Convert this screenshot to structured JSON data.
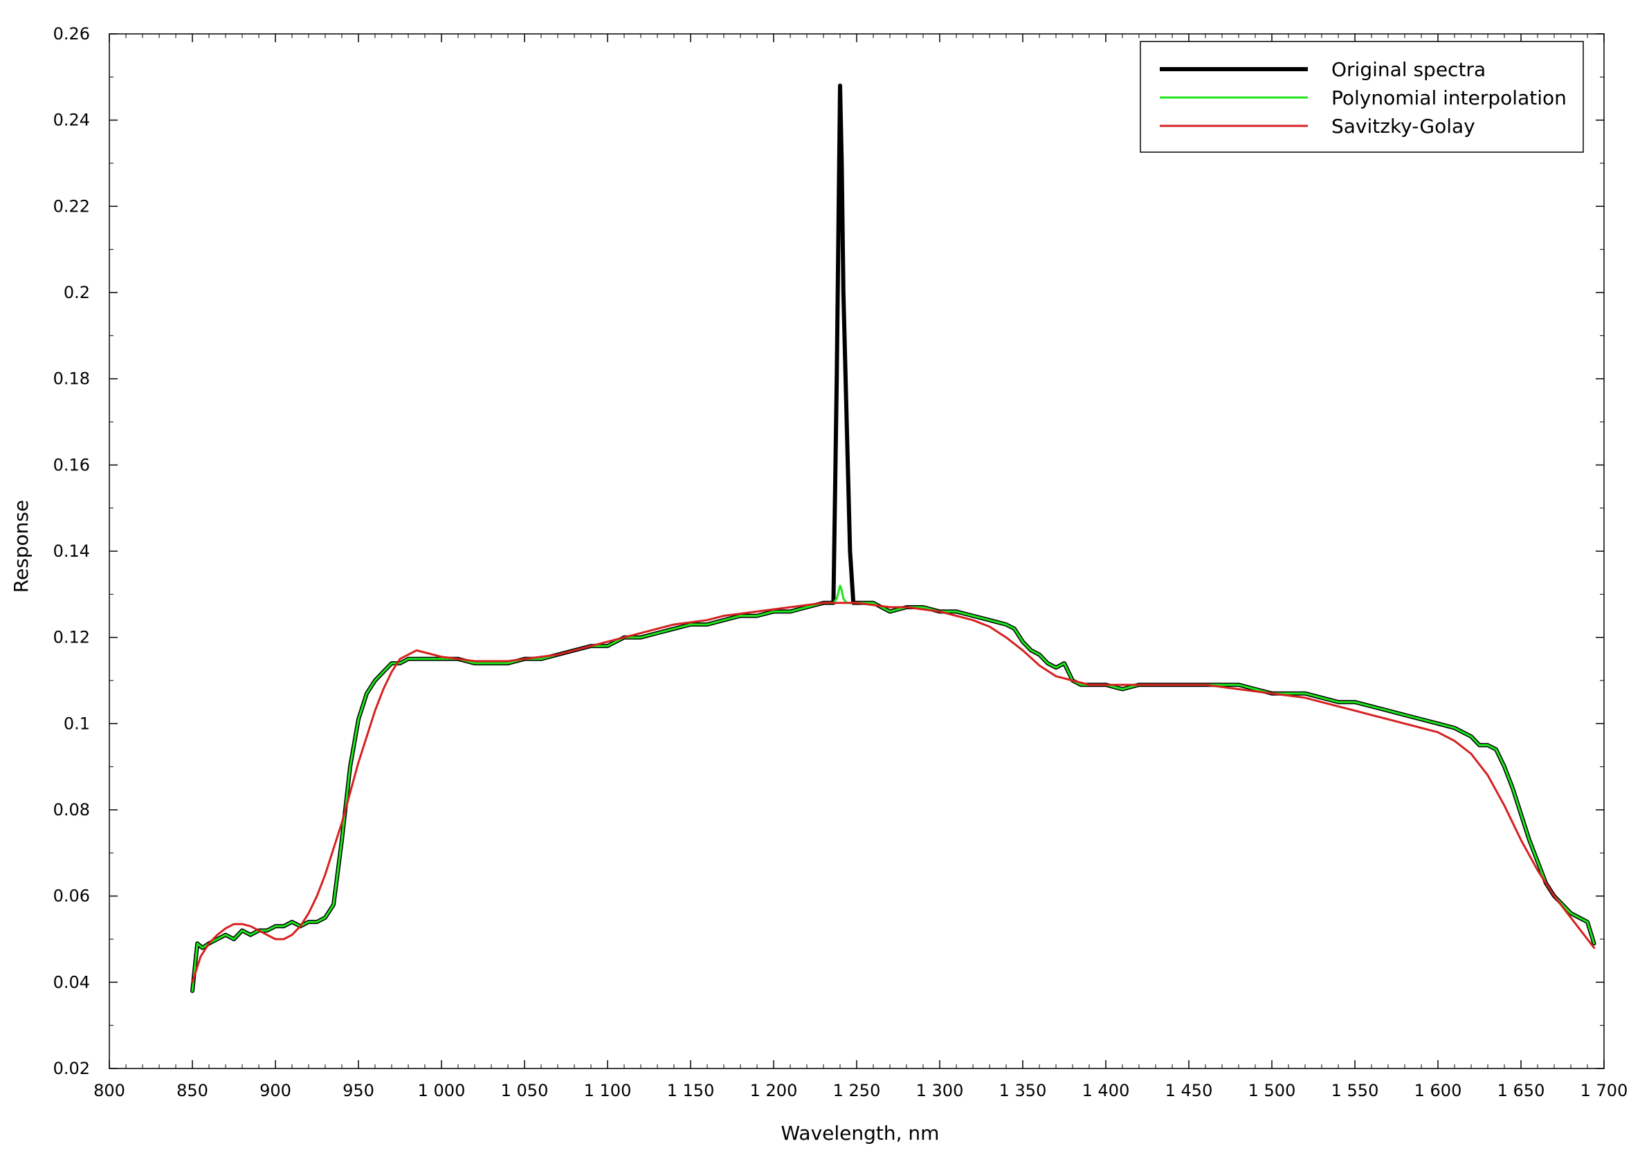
{
  "chart_data": {
    "type": "line",
    "xlabel": "Wavelength, nm",
    "ylabel": "Response",
    "xlim": [
      800,
      1700
    ],
    "ylim": [
      0.02,
      0.26
    ],
    "x_ticks": [
      {
        "value": 800,
        "label": "800"
      },
      {
        "value": 850,
        "label": "850"
      },
      {
        "value": 900,
        "label": "900"
      },
      {
        "value": 950,
        "label": "950"
      },
      {
        "value": 1000,
        "label": "1 000"
      },
      {
        "value": 1050,
        "label": "1 050"
      },
      {
        "value": 1100,
        "label": "1 100"
      },
      {
        "value": 1150,
        "label": "1 150"
      },
      {
        "value": 1200,
        "label": "1 200"
      },
      {
        "value": 1250,
        "label": "1 250"
      },
      {
        "value": 1300,
        "label": "1 300"
      },
      {
        "value": 1350,
        "label": "1 350"
      },
      {
        "value": 1400,
        "label": "1 400"
      },
      {
        "value": 1450,
        "label": "1 450"
      },
      {
        "value": 1500,
        "label": "1 500"
      },
      {
        "value": 1550,
        "label": "1 550"
      },
      {
        "value": 1600,
        "label": "1 600"
      },
      {
        "value": 1650,
        "label": "1 650"
      },
      {
        "value": 1700,
        "label": "1 700"
      }
    ],
    "y_ticks": [
      {
        "value": 0.02,
        "label": "0.02"
      },
      {
        "value": 0.04,
        "label": "0.04"
      },
      {
        "value": 0.06,
        "label": "0.06"
      },
      {
        "value": 0.08,
        "label": "0.08"
      },
      {
        "value": 0.1,
        "label": "0.1"
      },
      {
        "value": 0.12,
        "label": "0.12"
      },
      {
        "value": 0.14,
        "label": "0.14"
      },
      {
        "value": 0.16,
        "label": "0.16"
      },
      {
        "value": 0.18,
        "label": "0.18"
      },
      {
        "value": 0.2,
        "label": "0.2"
      },
      {
        "value": 0.22,
        "label": "0.22"
      },
      {
        "value": 0.24,
        "label": "0.24"
      },
      {
        "value": 0.26,
        "label": "0.26"
      }
    ],
    "grid": false,
    "legend_position": "top-right",
    "series": [
      {
        "name": "Original spectra",
        "color": "#000000",
        "x": [
          850,
          853,
          856,
          860,
          865,
          870,
          875,
          880,
          885,
          890,
          895,
          900,
          905,
          910,
          915,
          920,
          925,
          930,
          935,
          940,
          945,
          950,
          955,
          960,
          965,
          970,
          975,
          980,
          985,
          990,
          1000,
          1010,
          1020,
          1030,
          1040,
          1050,
          1060,
          1070,
          1080,
          1090,
          1100,
          1110,
          1120,
          1130,
          1140,
          1150,
          1160,
          1170,
          1180,
          1190,
          1200,
          1210,
          1220,
          1230,
          1236,
          1238,
          1240,
          1241,
          1242,
          1244,
          1246,
          1248,
          1250,
          1255,
          1260,
          1270,
          1280,
          1290,
          1300,
          1310,
          1320,
          1330,
          1340,
          1345,
          1350,
          1355,
          1360,
          1365,
          1370,
          1375,
          1380,
          1385,
          1390,
          1400,
          1410,
          1420,
          1430,
          1440,
          1450,
          1460,
          1470,
          1480,
          1490,
          1500,
          1510,
          1520,
          1530,
          1540,
          1550,
          1560,
          1570,
          1580,
          1590,
          1600,
          1610,
          1620,
          1625,
          1630,
          1635,
          1640,
          1645,
          1650,
          1655,
          1660,
          1665,
          1670,
          1675,
          1680,
          1685,
          1690,
          1694
        ],
        "y": [
          0.038,
          0.049,
          0.048,
          0.049,
          0.05,
          0.051,
          0.05,
          0.052,
          0.051,
          0.052,
          0.052,
          0.053,
          0.053,
          0.054,
          0.053,
          0.054,
          0.054,
          0.055,
          0.058,
          0.073,
          0.09,
          0.101,
          0.107,
          0.11,
          0.112,
          0.114,
          0.114,
          0.115,
          0.115,
          0.115,
          0.115,
          0.115,
          0.114,
          0.114,
          0.114,
          0.115,
          0.115,
          0.116,
          0.117,
          0.118,
          0.118,
          0.12,
          0.12,
          0.121,
          0.122,
          0.123,
          0.123,
          0.124,
          0.125,
          0.125,
          0.126,
          0.126,
          0.127,
          0.128,
          0.128,
          0.18,
          0.248,
          0.23,
          0.2,
          0.17,
          0.14,
          0.128,
          0.128,
          0.128,
          0.128,
          0.126,
          0.127,
          0.127,
          0.126,
          0.126,
          0.125,
          0.124,
          0.123,
          0.122,
          0.119,
          0.117,
          0.116,
          0.114,
          0.113,
          0.114,
          0.11,
          0.109,
          0.109,
          0.109,
          0.108,
          0.109,
          0.109,
          0.109,
          0.109,
          0.109,
          0.109,
          0.109,
          0.108,
          0.107,
          0.107,
          0.107,
          0.106,
          0.105,
          0.105,
          0.104,
          0.103,
          0.102,
          0.101,
          0.1,
          0.099,
          0.097,
          0.095,
          0.095,
          0.094,
          0.09,
          0.085,
          0.079,
          0.073,
          0.068,
          0.063,
          0.06,
          0.058,
          0.056,
          0.055,
          0.054,
          0.049
        ]
      },
      {
        "name": "Polynomial interpolation",
        "color": "#1ee61e",
        "x": [
          850,
          853,
          856,
          860,
          865,
          870,
          875,
          880,
          885,
          890,
          895,
          900,
          905,
          910,
          915,
          920,
          925,
          930,
          935,
          940,
          945,
          950,
          955,
          960,
          965,
          970,
          975,
          980,
          985,
          990,
          1000,
          1010,
          1020,
          1030,
          1040,
          1050,
          1060,
          1070,
          1080,
          1090,
          1100,
          1110,
          1120,
          1130,
          1140,
          1150,
          1160,
          1170,
          1180,
          1190,
          1200,
          1210,
          1220,
          1230,
          1236,
          1238,
          1240,
          1241,
          1242,
          1244,
          1246,
          1248,
          1250,
          1255,
          1260,
          1270,
          1280,
          1290,
          1300,
          1310,
          1320,
          1330,
          1340,
          1345,
          1350,
          1355,
          1360,
          1365,
          1370,
          1375,
          1380,
          1385,
          1390,
          1400,
          1410,
          1420,
          1430,
          1440,
          1450,
          1460,
          1470,
          1480,
          1490,
          1500,
          1510,
          1520,
          1530,
          1540,
          1550,
          1560,
          1570,
          1580,
          1590,
          1600,
          1610,
          1620,
          1625,
          1630,
          1635,
          1640,
          1645,
          1650,
          1655,
          1660,
          1665,
          1670,
          1675,
          1680,
          1685,
          1690,
          1694
        ],
        "y": [
          0.038,
          0.049,
          0.048,
          0.049,
          0.05,
          0.051,
          0.05,
          0.052,
          0.051,
          0.052,
          0.052,
          0.053,
          0.053,
          0.054,
          0.053,
          0.054,
          0.054,
          0.055,
          0.058,
          0.073,
          0.09,
          0.101,
          0.107,
          0.11,
          0.112,
          0.114,
          0.114,
          0.115,
          0.115,
          0.115,
          0.115,
          0.115,
          0.114,
          0.114,
          0.114,
          0.115,
          0.115,
          0.116,
          0.117,
          0.118,
          0.118,
          0.12,
          0.12,
          0.121,
          0.122,
          0.123,
          0.123,
          0.124,
          0.125,
          0.125,
          0.126,
          0.126,
          0.127,
          0.128,
          0.128,
          0.129,
          0.132,
          0.131,
          0.129,
          0.128,
          0.128,
          0.128,
          0.128,
          0.128,
          0.128,
          0.126,
          0.127,
          0.127,
          0.126,
          0.126,
          0.125,
          0.124,
          0.123,
          0.122,
          0.119,
          0.117,
          0.116,
          0.114,
          0.113,
          0.114,
          0.11,
          0.109,
          0.109,
          0.109,
          0.108,
          0.109,
          0.109,
          0.109,
          0.109,
          0.109,
          0.109,
          0.109,
          0.108,
          0.107,
          0.107,
          0.107,
          0.106,
          0.105,
          0.105,
          0.104,
          0.103,
          0.102,
          0.101,
          0.1,
          0.099,
          0.097,
          0.095,
          0.095,
          0.094,
          0.09,
          0.085,
          0.079,
          0.073,
          0.068,
          0.063,
          0.06,
          0.058,
          0.056,
          0.055,
          0.054,
          0.049
        ]
      },
      {
        "name": "Savitzky-Golay",
        "color": "#d62020",
        "x": [
          850,
          855,
          860,
          865,
          870,
          875,
          880,
          885,
          890,
          895,
          900,
          905,
          910,
          915,
          920,
          925,
          930,
          935,
          940,
          945,
          950,
          955,
          960,
          965,
          970,
          975,
          980,
          985,
          990,
          1000,
          1010,
          1020,
          1030,
          1040,
          1050,
          1060,
          1070,
          1080,
          1090,
          1100,
          1110,
          1120,
          1130,
          1140,
          1150,
          1160,
          1170,
          1180,
          1190,
          1200,
          1210,
          1220,
          1230,
          1240,
          1250,
          1260,
          1270,
          1280,
          1290,
          1300,
          1310,
          1320,
          1330,
          1340,
          1350,
          1360,
          1370,
          1380,
          1390,
          1400,
          1410,
          1420,
          1430,
          1440,
          1450,
          1460,
          1470,
          1480,
          1490,
          1500,
          1510,
          1520,
          1530,
          1540,
          1550,
          1560,
          1570,
          1580,
          1590,
          1600,
          1610,
          1620,
          1630,
          1640,
          1650,
          1660,
          1670,
          1680,
          1690,
          1694
        ],
        "y": [
          0.04,
          0.046,
          0.049,
          0.051,
          0.0525,
          0.0535,
          0.0535,
          0.053,
          0.052,
          0.051,
          0.05,
          0.05,
          0.051,
          0.053,
          0.056,
          0.06,
          0.065,
          0.071,
          0.077,
          0.084,
          0.091,
          0.097,
          0.103,
          0.108,
          0.112,
          0.115,
          0.116,
          0.117,
          0.1165,
          0.1155,
          0.115,
          0.1145,
          0.1145,
          0.1145,
          0.115,
          0.1155,
          0.116,
          0.117,
          0.118,
          0.119,
          0.12,
          0.121,
          0.122,
          0.123,
          0.1235,
          0.124,
          0.125,
          0.1255,
          0.126,
          0.1265,
          0.127,
          0.1275,
          0.128,
          0.128,
          0.128,
          0.1275,
          0.127,
          0.127,
          0.1265,
          0.126,
          0.125,
          0.124,
          0.1225,
          0.12,
          0.117,
          0.1135,
          0.111,
          0.11,
          0.109,
          0.109,
          0.109,
          0.109,
          0.109,
          0.109,
          0.109,
          0.109,
          0.1085,
          0.108,
          0.1075,
          0.107,
          0.1065,
          0.106,
          0.105,
          0.104,
          0.103,
          0.102,
          0.101,
          0.1,
          0.099,
          0.098,
          0.096,
          0.093,
          0.088,
          0.081,
          0.073,
          0.066,
          0.06,
          0.055,
          0.05,
          0.048
        ]
      }
    ]
  }
}
